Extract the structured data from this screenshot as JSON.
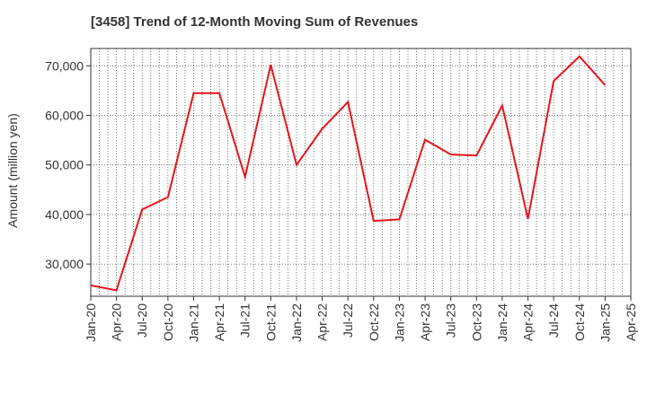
{
  "chart_data": {
    "type": "line",
    "title": "[3458]  Trend of 12-Month Moving Sum of Revenues",
    "xlabel": "",
    "ylabel": "Amount (million yen)",
    "x": [
      "Jan-20",
      "Apr-20",
      "Jul-20",
      "Oct-20",
      "Jan-21",
      "Apr-21",
      "Jul-21",
      "Oct-21",
      "Jan-22",
      "Apr-22",
      "Jul-22",
      "Oct-22",
      "Jan-23",
      "Apr-23",
      "Jul-23",
      "Oct-23",
      "Jan-24",
      "Apr-24",
      "Jul-24",
      "Oct-24",
      "Jan-25"
    ],
    "x_ticks": [
      "Jan-20",
      "Apr-20",
      "Jul-20",
      "Oct-20",
      "Jan-21",
      "Apr-21",
      "Jul-21",
      "Oct-21",
      "Jan-22",
      "Apr-22",
      "Jul-22",
      "Oct-22",
      "Jan-23",
      "Apr-23",
      "Jul-23",
      "Oct-23",
      "Jan-24",
      "Apr-24",
      "Jul-24",
      "Oct-24",
      "Jan-25",
      "Apr-25"
    ],
    "series": [
      {
        "color": "#e8141a",
        "values": [
          25700,
          24700,
          41000,
          43500,
          64500,
          64500,
          47600,
          70200,
          50000,
          57300,
          62700,
          38700,
          39000,
          55100,
          52100,
          51900,
          62000,
          39100,
          66900,
          71900,
          66100
        ]
      }
    ],
    "ylim": [
      23500,
      73500
    ],
    "y_ticks": [
      30000,
      40000,
      50000,
      60000,
      70000
    ],
    "y_tick_labels": [
      "30,000",
      "40,000",
      "50,000",
      "60,000",
      "70,000"
    ],
    "grid": true,
    "grid_style": "dotted",
    "legend": "none"
  }
}
